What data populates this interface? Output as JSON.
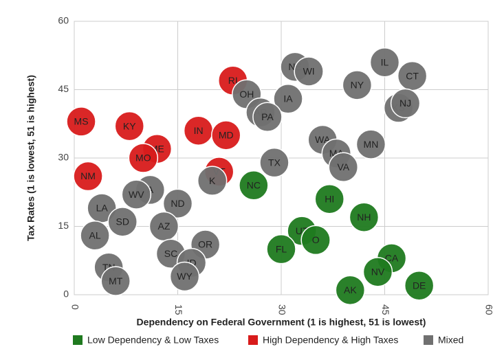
{
  "chart_data": {
    "type": "scatter",
    "x_label": "Dependency on Federal Government (1 is highest, 51 is lowest)",
    "y_label": "Tax Rates (1 is lowest, 51 is highest)",
    "xlim": [
      0,
      60
    ],
    "xticks": [
      0,
      15,
      30,
      45,
      60
    ],
    "ylim": [
      0,
      60
    ],
    "yticks": [
      0,
      15,
      30,
      45,
      60
    ],
    "grid": true,
    "legend": "bottom",
    "series": [
      {
        "name": "Low Dependency & Low Taxes",
        "color": "#1f7a1f",
        "labels": [
          "NC",
          "HI",
          "NH",
          "UT",
          "O",
          "FL",
          "CA",
          "NV",
          "AK",
          "DE"
        ],
        "x": [
          26,
          37,
          42,
          33,
          35,
          30,
          46,
          44,
          40,
          50
        ],
        "values": [
          24,
          21,
          17,
          14,
          12,
          10,
          8,
          5,
          1,
          2
        ]
      },
      {
        "name": "High Dependency & High Taxes",
        "color": "#d81b1b",
        "labels": [
          "MS",
          "KY",
          "RI",
          "IN",
          "MD",
          "ME",
          "MO",
          "VT",
          "NM"
        ],
        "x": [
          1,
          8,
          23,
          18,
          22,
          12,
          10,
          21,
          2
        ],
        "values": [
          38,
          37,
          47,
          36,
          35,
          32,
          30,
          27,
          26
        ]
      },
      {
        "name": "Mixed",
        "color": "#707070",
        "labels": [
          "NE",
          "WI",
          "IL",
          "CT",
          "NY",
          "OH",
          "IA",
          "AR",
          "PA",
          "KS",
          "NJ",
          "WA",
          "MA",
          "MN",
          "VA",
          "TX",
          "K",
          "A",
          "WV",
          "ND",
          "LA",
          "SD",
          "AZ",
          "AL",
          "OR",
          "SC",
          "ID",
          "TN",
          "MT",
          "WY"
        ],
        "x": [
          32,
          34,
          45,
          49,
          41,
          25,
          31,
          27,
          28,
          47,
          48,
          36,
          38,
          43,
          39,
          29,
          20,
          11,
          9,
          15,
          4,
          7,
          13,
          3,
          19,
          14,
          17,
          5,
          6,
          16
        ],
        "values": [
          50,
          49,
          51,
          48,
          46,
          44,
          43,
          40,
          39,
          41,
          42,
          34,
          31,
          33,
          28,
          29,
          25,
          23,
          22,
          20,
          19,
          16,
          15,
          13,
          11,
          9,
          7,
          6,
          3,
          4
        ]
      }
    ]
  }
}
